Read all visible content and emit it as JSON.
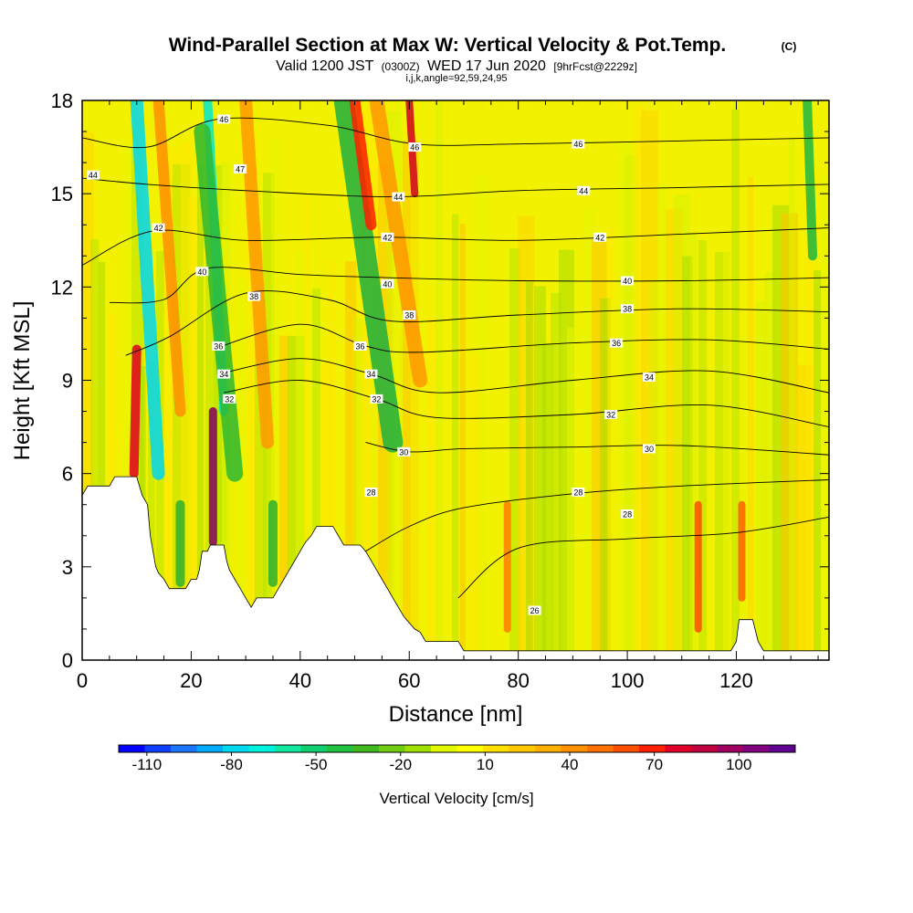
{
  "title": {
    "main": "Wind-Parallel Section at Max W: Vertical Velocity & Pot.Temp.",
    "copyright": "(C)",
    "valid_prefix": "Valid 1200 JST",
    "valid_utc": "(0300Z)",
    "valid_date": "WED 17 Jun 2020",
    "forecast": "[9hrFcst@2229z]",
    "indices": "i,j,k,angle=92,59,24,95"
  },
  "chart_data": {
    "type": "heatmap",
    "xlabel": "Distance [nm]",
    "ylabel": "Height [Kft MSL]",
    "xlim": [
      0,
      137
    ],
    "ylim": [
      0,
      18
    ],
    "x_ticks": [
      "0",
      "20",
      "40",
      "60",
      "80",
      "100",
      "120"
    ],
    "y_ticks": [
      "0",
      "3",
      "6",
      "9",
      "12",
      "15",
      "18"
    ],
    "colorbar": {
      "label": "Vertical Velocity [cm/s]",
      "tick_labels": [
        "-110",
        "-80",
        "-50",
        "-20",
        "10",
        "40",
        "70",
        "100"
      ],
      "min": -120,
      "max": 120,
      "colors": [
        "#0000ff",
        "#1040ff",
        "#1a75ff",
        "#00aaff",
        "#00d8f0",
        "#00f0e0",
        "#10e8a0",
        "#10d070",
        "#20c040",
        "#40b820",
        "#70cc10",
        "#a0e000",
        "#e0f800",
        "#ffff00",
        "#ffe000",
        "#ffc800",
        "#ffb000",
        "#ff9000",
        "#ff7000",
        "#ff5000",
        "#ff2000",
        "#e0002a",
        "#c00040",
        "#a00060",
        "#800080",
        "#600090"
      ]
    },
    "theta_contours": [
      {
        "value": 26,
        "points": [
          [
            69,
            2.0
          ],
          [
            80,
            3.6
          ],
          [
            100,
            3.9
          ],
          [
            120,
            4.1
          ],
          [
            137,
            4.6
          ]
        ]
      },
      {
        "value": 28,
        "points": [
          [
            52,
            3.5
          ],
          [
            60,
            4.3
          ],
          [
            70,
            4.9
          ],
          [
            90,
            5.35
          ],
          [
            110,
            5.6
          ],
          [
            137,
            5.8
          ]
        ]
      },
      {
        "value": 30,
        "points": [
          [
            52,
            7.0
          ],
          [
            60,
            6.7
          ],
          [
            70,
            6.8
          ],
          [
            90,
            6.85
          ],
          [
            110,
            6.9
          ],
          [
            137,
            6.6
          ]
        ]
      },
      {
        "value": 32,
        "points": [
          [
            26,
            8.6
          ],
          [
            40,
            9.0
          ],
          [
            54,
            8.4
          ],
          [
            65,
            7.8
          ],
          [
            90,
            7.9
          ],
          [
            115,
            8.2
          ],
          [
            137,
            7.5
          ]
        ]
      },
      {
        "value": 34,
        "points": [
          [
            25,
            9.2
          ],
          [
            40,
            9.7
          ],
          [
            53,
            9.2
          ],
          [
            65,
            8.6
          ],
          [
            90,
            9.0
          ],
          [
            115,
            9.3
          ],
          [
            137,
            8.6
          ]
        ]
      },
      {
        "value": 36,
        "points": [
          [
            24,
            10.0
          ],
          [
            40,
            10.8
          ],
          [
            52,
            10.1
          ],
          [
            62,
            9.9
          ],
          [
            90,
            10.2
          ],
          [
            115,
            10.3
          ],
          [
            137,
            10.0
          ]
        ]
      },
      {
        "value": 38,
        "points": [
          [
            8,
            9.8
          ],
          [
            16,
            10.4
          ],
          [
            30,
            11.8
          ],
          [
            45,
            11.6
          ],
          [
            57,
            10.9
          ],
          [
            80,
            11.1
          ],
          [
            110,
            11.3
          ],
          [
            137,
            11.2
          ]
        ]
      },
      {
        "value": 40,
        "points": [
          [
            5,
            11.5
          ],
          [
            15,
            11.6
          ],
          [
            23,
            12.6
          ],
          [
            40,
            12.4
          ],
          [
            56,
            12.3
          ],
          [
            80,
            12.2
          ],
          [
            110,
            12.2
          ],
          [
            137,
            12.3
          ]
        ]
      },
      {
        "value": 42,
        "points": [
          [
            0,
            12.7
          ],
          [
            13,
            13.8
          ],
          [
            30,
            13.5
          ],
          [
            55,
            13.6
          ],
          [
            80,
            13.5
          ],
          [
            110,
            13.7
          ],
          [
            137,
            13.9
          ]
        ]
      },
      {
        "value": 44,
        "points": [
          [
            0,
            15.5
          ],
          [
            12,
            15.3
          ],
          [
            30,
            15.1
          ],
          [
            57,
            14.9
          ],
          [
            80,
            15.1
          ],
          [
            110,
            15.2
          ],
          [
            137,
            15.3
          ]
        ]
      },
      {
        "value": 46,
        "points": [
          [
            0,
            16.8
          ],
          [
            12,
            16.5
          ],
          [
            25,
            17.4
          ],
          [
            45,
            17.2
          ],
          [
            61,
            16.6
          ],
          [
            80,
            16.6
          ],
          [
            110,
            16.7
          ],
          [
            137,
            16.8
          ]
        ]
      }
    ],
    "contour_labels": [
      {
        "text": "44",
        "x": 2,
        "y": 15.6
      },
      {
        "text": "46",
        "x": 26,
        "y": 17.4
      },
      {
        "text": "47",
        "x": 29,
        "y": 15.8
      },
      {
        "text": "42",
        "x": 14,
        "y": 13.9
      },
      {
        "text": "40",
        "x": 22,
        "y": 12.5
      },
      {
        "text": "38",
        "x": 31.5,
        "y": 11.7
      },
      {
        "text": "36",
        "x": 25,
        "y": 10.1
      },
      {
        "text": "34",
        "x": 26,
        "y": 9.2
      },
      {
        "text": "32",
        "x": 27,
        "y": 8.4
      },
      {
        "text": "46",
        "x": 61,
        "y": 16.5
      },
      {
        "text": "44",
        "x": 58,
        "y": 14.9
      },
      {
        "text": "42",
        "x": 56,
        "y": 13.6
      },
      {
        "text": "40",
        "x": 56,
        "y": 12.1
      },
      {
        "text": "38",
        "x": 60,
        "y": 11.1
      },
      {
        "text": "36",
        "x": 51,
        "y": 10.1
      },
      {
        "text": "34",
        "x": 53,
        "y": 9.2
      },
      {
        "text": "32",
        "x": 54,
        "y": 8.4
      },
      {
        "text": "30",
        "x": 59,
        "y": 6.7
      },
      {
        "text": "28",
        "x": 53,
        "y": 5.4
      },
      {
        "text": "46",
        "x": 91,
        "y": 16.6
      },
      {
        "text": "44",
        "x": 92,
        "y": 15.1
      },
      {
        "text": "42",
        "x": 95,
        "y": 13.6
      },
      {
        "text": "40",
        "x": 100,
        "y": 12.2
      },
      {
        "text": "38",
        "x": 100,
        "y": 11.3
      },
      {
        "text": "36",
        "x": 98,
        "y": 10.2
      },
      {
        "text": "34",
        "x": 104,
        "y": 9.1
      },
      {
        "text": "32",
        "x": 97,
        "y": 7.9
      },
      {
        "text": "30",
        "x": 104,
        "y": 6.8
      },
      {
        "text": "28",
        "x": 91,
        "y": 5.4
      },
      {
        "text": "28",
        "x": 100,
        "y": 4.7
      },
      {
        "text": "26",
        "x": 83,
        "y": 1.6
      }
    ],
    "terrain": [
      [
        0,
        5.3
      ],
      [
        1,
        5.6
      ],
      [
        2,
        5.6
      ],
      [
        5,
        5.6
      ],
      [
        6,
        5.9
      ],
      [
        10,
        5.9
      ],
      [
        11,
        5.3
      ],
      [
        12,
        5.0
      ],
      [
        12.5,
        4.0
      ],
      [
        13,
        3.5
      ],
      [
        13.5,
        3.0
      ],
      [
        14,
        2.8
      ],
      [
        15,
        2.6
      ],
      [
        16,
        2.3
      ],
      [
        19,
        2.3
      ],
      [
        20,
        2.6
      ],
      [
        21,
        2.6
      ],
      [
        21.5,
        2.9
      ],
      [
        22,
        3.5
      ],
      [
        23,
        3.5
      ],
      [
        23.5,
        3.7
      ],
      [
        26,
        3.7
      ],
      [
        26.5,
        3.2
      ],
      [
        27,
        2.9
      ],
      [
        28,
        2.6
      ],
      [
        29,
        2.3
      ],
      [
        30,
        2.0
      ],
      [
        31,
        1.7
      ],
      [
        32,
        2.0
      ],
      [
        35,
        2.0
      ],
      [
        36,
        2.3
      ],
      [
        37,
        2.6
      ],
      [
        38,
        2.9
      ],
      [
        39,
        3.2
      ],
      [
        40,
        3.5
      ],
      [
        41,
        3.8
      ],
      [
        42,
        4.0
      ],
      [
        43,
        4.3
      ],
      [
        46,
        4.3
      ],
      [
        47,
        4.0
      ],
      [
        48,
        3.7
      ],
      [
        51,
        3.7
      ],
      [
        52,
        3.5
      ],
      [
        53,
        3.2
      ],
      [
        54,
        2.9
      ],
      [
        55,
        2.6
      ],
      [
        56,
        2.3
      ],
      [
        57,
        2.0
      ],
      [
        58,
        1.7
      ],
      [
        59,
        1.4
      ],
      [
        60,
        1.2
      ],
      [
        61,
        1.0
      ],
      [
        62,
        0.9
      ],
      [
        63,
        0.6
      ],
      [
        69,
        0.6
      ],
      [
        70,
        0.3
      ],
      [
        119,
        0.3
      ],
      [
        120,
        0.6
      ],
      [
        120.5,
        1.3
      ],
      [
        123,
        1.3
      ],
      [
        124,
        0.6
      ],
      [
        125,
        0.3
      ],
      [
        137,
        0.3
      ]
    ]
  }
}
